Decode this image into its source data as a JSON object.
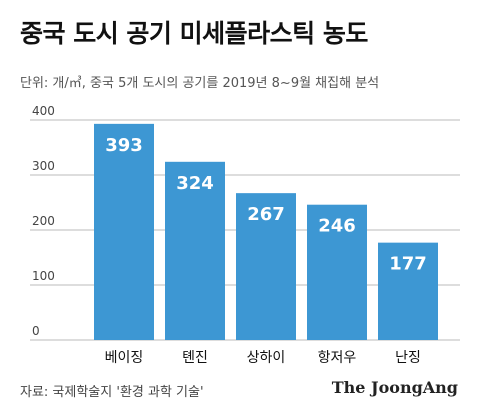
{
  "header": {
    "title": "중국 도시 공기 미세플라스틱 농도",
    "subtitle": "단위: 개/㎥, 중국 5개 도시의 공기를 2019년 8~9월 채집해 분석"
  },
  "footer": {
    "source": "자료: 국제학술지 '환경 과학 기술'",
    "brand": "The JoongAng"
  },
  "colors": {
    "bar": "#3d97d3",
    "bar_label": "#ffffff",
    "grid": "#bbbbbb",
    "tick": "#444444"
  },
  "chart_data": {
    "type": "bar",
    "categories": [
      "베이징",
      "톈진",
      "상하이",
      "항저우",
      "난징"
    ],
    "values": [
      393,
      324,
      267,
      246,
      177
    ],
    "ylim": [
      0,
      400
    ],
    "yticks": [
      0,
      100,
      200,
      300,
      400
    ],
    "grid": true,
    "data_labels": true
  }
}
